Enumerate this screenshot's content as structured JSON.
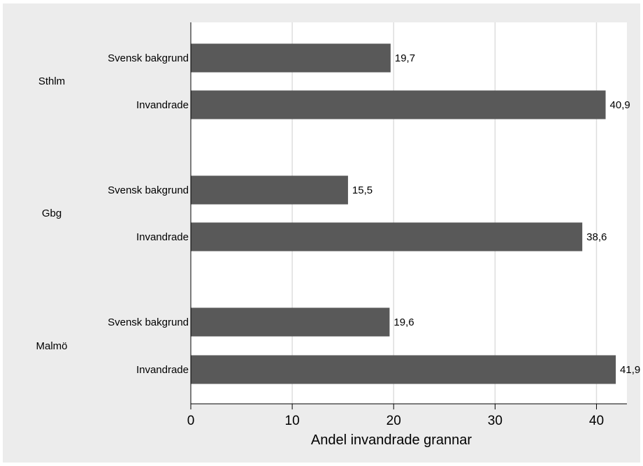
{
  "colors": {
    "outer_background": "#ececec",
    "plot_background": "#ffffff",
    "bar": "#595959",
    "grid": "#dddddd",
    "axis": "#000000"
  },
  "chart_data": {
    "type": "bar",
    "orientation": "horizontal",
    "xlabel": "Andel invandrade grannar",
    "xlim": [
      0,
      43
    ],
    "xticks": [
      0,
      10,
      20,
      30,
      40
    ],
    "grid": true,
    "groups": [
      "Sthlm",
      "Gbg",
      "Malmö"
    ],
    "subcategories": [
      "Svensk bakgrund",
      "Invandrade"
    ],
    "values": [
      [
        19.7,
        40.9
      ],
      [
        15.5,
        38.6
      ],
      [
        19.6,
        41.9
      ]
    ],
    "value_labels": [
      [
        "19,7",
        "40,9"
      ],
      [
        "15,5",
        "38,6"
      ],
      [
        "19,6",
        "41,9"
      ]
    ]
  }
}
